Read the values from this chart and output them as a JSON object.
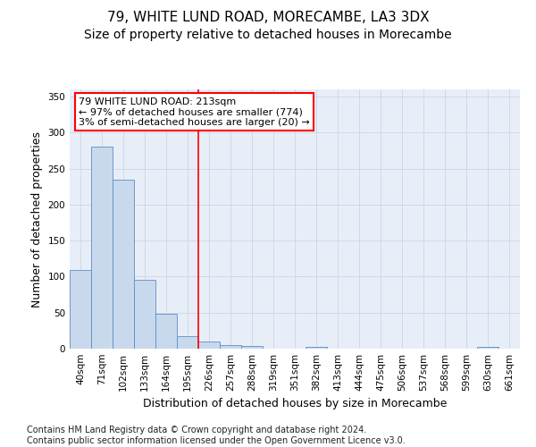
{
  "title": "79, WHITE LUND ROAD, MORECAMBE, LA3 3DX",
  "subtitle": "Size of property relative to detached houses in Morecambe",
  "xlabel": "Distribution of detached houses by size in Morecambe",
  "ylabel": "Number of detached properties",
  "categories": [
    "40sqm",
    "71sqm",
    "102sqm",
    "133sqm",
    "164sqm",
    "195sqm",
    "226sqm",
    "257sqm",
    "288sqm",
    "319sqm",
    "351sqm",
    "382sqm",
    "413sqm",
    "444sqm",
    "475sqm",
    "506sqm",
    "537sqm",
    "568sqm",
    "599sqm",
    "630sqm",
    "661sqm"
  ],
  "values": [
    109,
    280,
    235,
    95,
    49,
    18,
    10,
    5,
    4,
    0,
    0,
    3,
    0,
    0,
    0,
    0,
    0,
    0,
    0,
    3,
    0
  ],
  "bar_color": "#c8d9ed",
  "bar_edge_color": "#5a8fc3",
  "grid_color": "#d0d8e8",
  "background_color": "#e8eef8",
  "red_line_x": 5.5,
  "annotation_text": "79 WHITE LUND ROAD: 213sqm\n← 97% of detached houses are smaller (774)\n3% of semi-detached houses are larger (20) →",
  "annotation_box_color": "white",
  "annotation_box_edge_color": "red",
  "ylim": [
    0,
    360
  ],
  "yticks": [
    0,
    50,
    100,
    150,
    200,
    250,
    300,
    350
  ],
  "footer_text": "Contains HM Land Registry data © Crown copyright and database right 2024.\nContains public sector information licensed under the Open Government Licence v3.0.",
  "title_fontsize": 11,
  "subtitle_fontsize": 10,
  "axis_label_fontsize": 9,
  "tick_fontsize": 7.5,
  "footer_fontsize": 7
}
